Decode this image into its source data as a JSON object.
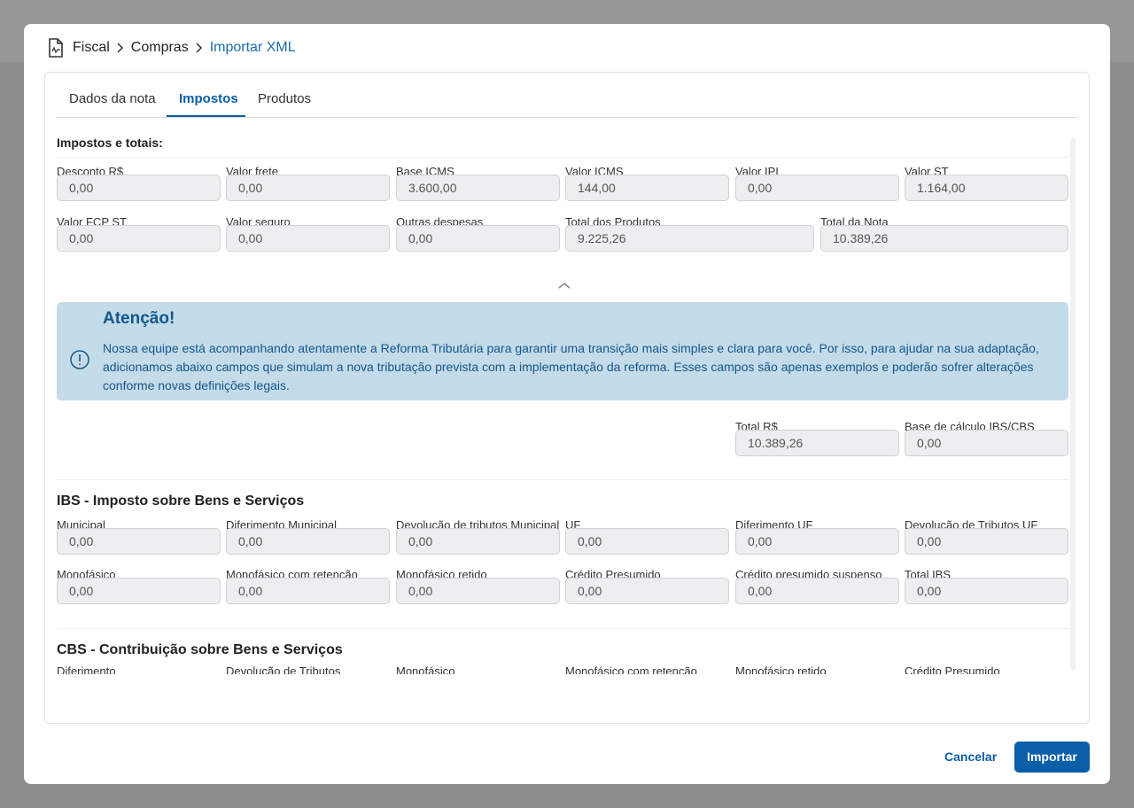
{
  "breadcrumb": [
    "Fiscal",
    "Compras",
    "Importar XML"
  ],
  "tabs": [
    "Dados da nota",
    "Impostos",
    "Produtos"
  ],
  "totals": {
    "title": "Impostos e totais:",
    "fields": [
      {
        "label": "Desconto R$",
        "value": "0,00"
      },
      {
        "label": "Valor frete",
        "value": "0,00"
      },
      {
        "label": "Base ICMS",
        "value": "3.600,00"
      },
      {
        "label": "Valor ICMS",
        "value": "144,00"
      },
      {
        "label": "Valor IPI",
        "value": "0,00"
      },
      {
        "label": "Valor ST",
        "value": "1.164,00"
      },
      {
        "label": "Valor FCP ST",
        "value": "0,00"
      },
      {
        "label": "Valor seguro",
        "value": "0,00"
      },
      {
        "label": "Outras despesas",
        "value": "0,00"
      },
      {
        "label": "Total dos Produtos",
        "value": "9.225,26"
      },
      {
        "label": "Total da Nota",
        "value": "10.389,26"
      }
    ]
  },
  "alert": {
    "title": "Atenção!",
    "text": "Nossa equipe está acompanhando atentamente a Reforma Tributária para garantir uma transição mais simples e clara para você. Por isso, para ajudar na sua adaptação, adicionamos abaixo campos que simulam a nova tributação prevista com a implementação da reforma. Esses campos são apenas exemplos e poderão sofrer alterações conforme novas definições legais."
  },
  "summary_fields": [
    {
      "label": "Total R$",
      "value": "10.389,26"
    },
    {
      "label": "Base de cálculo IBS/CBS",
      "value": "0,00"
    }
  ],
  "ibs": {
    "title": "IBS - Imposto sobre Bens e Serviços",
    "fields": [
      {
        "label": "Municipal",
        "value": "0,00"
      },
      {
        "label": "Diferimento Municipal",
        "value": "0,00"
      },
      {
        "label": "Devolução de tributos Municipal",
        "value": "0,00"
      },
      {
        "label": "UF",
        "value": "0,00"
      },
      {
        "label": "Diferimento UF",
        "value": "0,00"
      },
      {
        "label": "Devolução de Tributos UF",
        "value": "0,00"
      },
      {
        "label": "Monofásico",
        "value": "0,00"
      },
      {
        "label": "Monofásico com retenção",
        "value": "0,00"
      },
      {
        "label": "Monofásico retido",
        "value": "0,00"
      },
      {
        "label": "Crédito Presumido",
        "value": "0,00"
      },
      {
        "label": "Crédito presumido suspenso",
        "value": "0,00"
      },
      {
        "label": "Total IBS",
        "value": "0,00"
      }
    ]
  },
  "cbs": {
    "title": "CBS - Contribuição sobre Bens e Serviços",
    "fields": [
      {
        "label": "Diferimento"
      },
      {
        "label": "Devolução de Tributos"
      },
      {
        "label": "Monofásico"
      },
      {
        "label": "Monofásico com retenção"
      },
      {
        "label": "Monofásico retido"
      },
      {
        "label": "Crédito Presumido"
      }
    ]
  },
  "actions": {
    "cancel": "Cancelar",
    "confirm": "Importar"
  }
}
